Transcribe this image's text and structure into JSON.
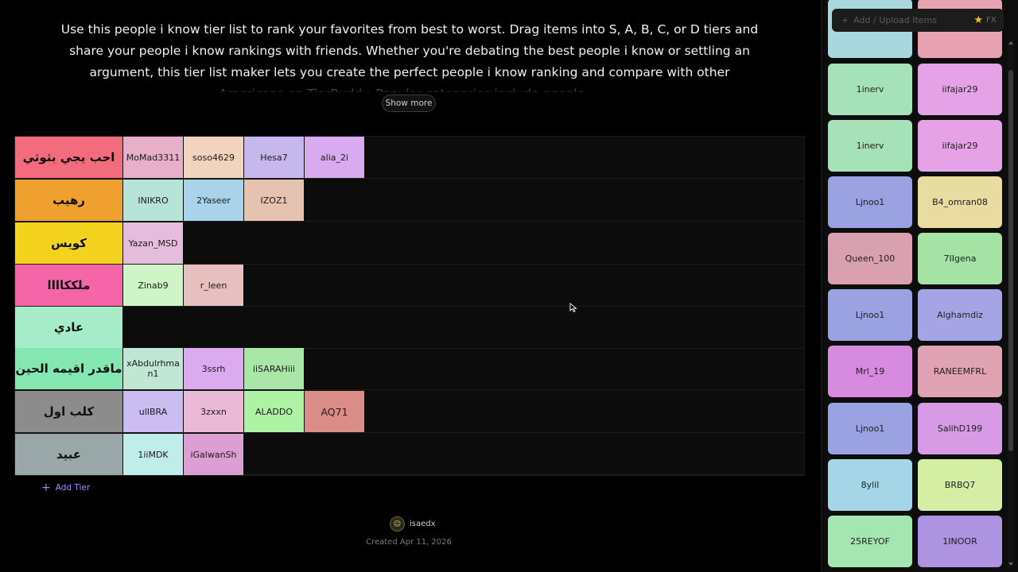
{
  "description": "Use this people i know tier list to rank your favorites from best to worst. Drag items into S, A, B, C, or D tiers and share your people i know rankings with friends. Whether you're debating the best people i know or settling an argument, this tier list maker lets you create the perfect people i know ranking and compare with other Americans on TierBuddy. Popular categories include people,...",
  "show_more_label": "Show more",
  "tiers": [
    {
      "label": "احب يجي بثوثي",
      "color": "#f36c7d",
      "items": [
        {
          "name": "MoMad3311",
          "color": "#e8b0c8"
        },
        {
          "name": "soso4629",
          "color": "#f2d3bd"
        },
        {
          "name": "Hesa7",
          "color": "#c7b7ef"
        },
        {
          "name": "alia_2i",
          "color": "#d9aaf0"
        }
      ]
    },
    {
      "label": "رهيب",
      "color": "#f0a02e",
      "items": [
        {
          "name": "INIKRO",
          "color": "#b6e5d8"
        },
        {
          "name": "2Yaseer",
          "color": "#a9d3eb"
        },
        {
          "name": "IZOZ1",
          "color": "#e6c2b0"
        }
      ]
    },
    {
      "label": "كويس",
      "color": "#f3d31e",
      "items": [
        {
          "name": "Yazan_MSD",
          "color": "#e6bcdc"
        }
      ]
    },
    {
      "label": "ملككاااا",
      "color": "#f765a9",
      "items": [
        {
          "name": "Zinab9",
          "color": "#cdf5c6"
        },
        {
          "name": "r_leen",
          "color": "#e6bfbe"
        }
      ]
    },
    {
      "label": "عادي",
      "color": "#a6ecc9",
      "items": []
    },
    {
      "label": "ماقدر اقيمه الحين",
      "color": "#84e6b0",
      "items": [
        {
          "name": "xAbdulrhman1",
          "color": "#bfe7d4"
        },
        {
          "name": "3ssrh",
          "color": "#dcaaee"
        },
        {
          "name": "iiSARAHiii",
          "color": "#a9e6a7"
        }
      ]
    },
    {
      "label": "كلب اول",
      "color": "#8c8c8c",
      "items": [
        {
          "name": "ulIBRA",
          "color": "#cbbcf2"
        },
        {
          "name": "3zxxn",
          "color": "#e9b9d6"
        },
        {
          "name": "ALADDO",
          "color": "#aef3a5"
        },
        {
          "name": "AQ71",
          "color": "#db8c86",
          "big": true
        }
      ]
    },
    {
      "label": "عبيد",
      "color": "#9aa7a8",
      "items": [
        {
          "name": "1iiMDK",
          "color": "#c1ecec"
        },
        {
          "name": "iGalwanSh",
          "color": "#dd9ed3"
        }
      ]
    }
  ],
  "add_tier_label": "Add Tier",
  "author": {
    "name": "isaedx"
  },
  "created": "Created Apr 11, 2026",
  "sidebar": {
    "upload_label": "Add / Upload Items",
    "fx_label": "FX",
    "pool": [
      {
        "name": "",
        "color": "#a8d8de"
      },
      {
        "name": "",
        "color": "#e8a3b3"
      },
      {
        "name": "1inerv",
        "color": "#a6e2b9"
      },
      {
        "name": "iifajar29",
        "color": "#e6a2e6"
      },
      {
        "name": "1inerv",
        "color": "#a6e2b9"
      },
      {
        "name": "iifajar29",
        "color": "#e6a2e6"
      },
      {
        "name": "Ljnoo1",
        "color": "#9aa2e2"
      },
      {
        "name": "B4_omran08",
        "color": "#e8dca0"
      },
      {
        "name": "Queen_100",
        "color": "#d9a0b0"
      },
      {
        "name": "7IIgena",
        "color": "#a4e3a4"
      },
      {
        "name": "Ljnoo1",
        "color": "#9aa2e2"
      },
      {
        "name": "Alghamdiz",
        "color": "#a5a5e6"
      },
      {
        "name": "Mrl_19",
        "color": "#d68ae0"
      },
      {
        "name": "RANEEMFRL",
        "color": "#e0a3b3"
      },
      {
        "name": "Ljnoo1",
        "color": "#9aa2e2"
      },
      {
        "name": "SalihD199",
        "color": "#d79be6"
      },
      {
        "name": "8ylil",
        "color": "#a4d6e8"
      },
      {
        "name": "BRBQ7",
        "color": "#d4eea4"
      },
      {
        "name": "25REYOF",
        "color": "#a4e6b0"
      },
      {
        "name": "1INOOR",
        "color": "#ae93e0"
      }
    ]
  }
}
